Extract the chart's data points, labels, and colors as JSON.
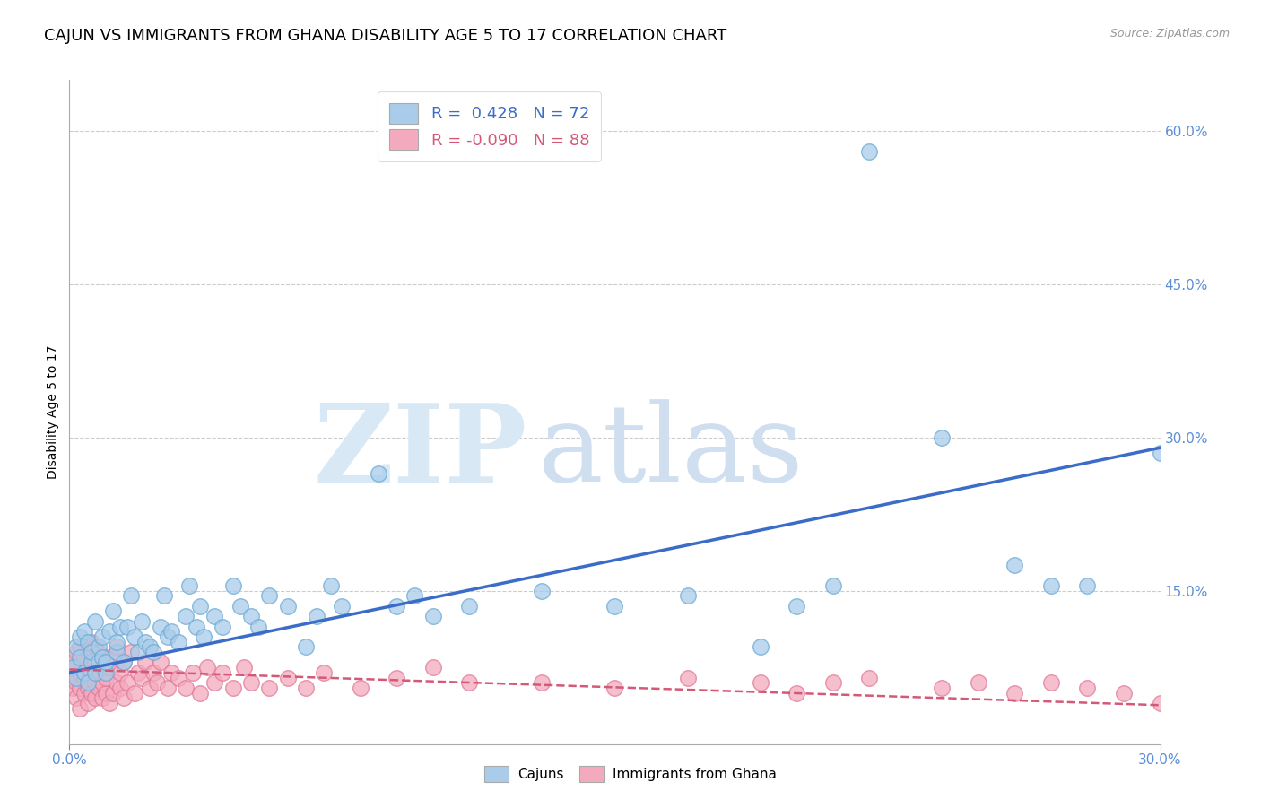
{
  "title": "CAJUN VS IMMIGRANTS FROM GHANA DISABILITY AGE 5 TO 17 CORRELATION CHART",
  "source": "Source: ZipAtlas.com",
  "ylabel_label": "Disability Age 5 to 17",
  "xlim": [
    0.0,
    0.3
  ],
  "ylim": [
    0.0,
    0.65
  ],
  "cajun_R": 0.428,
  "cajun_N": 72,
  "ghana_R": -0.09,
  "ghana_N": 88,
  "cajun_color": "#A8CCEA",
  "cajun_edge_color": "#6BAAD4",
  "ghana_color": "#F4AABE",
  "ghana_edge_color": "#E07898",
  "cajun_line_color": "#3B6CC8",
  "ghana_line_color": "#D45878",
  "tick_color": "#5B8ED6",
  "legend_labels": [
    "Cajuns",
    "Immigrants from Ghana"
  ],
  "watermark_zip": "ZIP",
  "watermark_atlas": "atlas",
  "title_fontsize": 13,
  "axis_fontsize": 10,
  "tick_fontsize": 11,
  "cajun_scatter_x": [
    0.001,
    0.002,
    0.002,
    0.003,
    0.003,
    0.004,
    0.004,
    0.005,
    0.005,
    0.006,
    0.006,
    0.007,
    0.007,
    0.008,
    0.008,
    0.009,
    0.009,
    0.01,
    0.01,
    0.011,
    0.012,
    0.013,
    0.013,
    0.014,
    0.015,
    0.016,
    0.017,
    0.018,
    0.019,
    0.02,
    0.021,
    0.022,
    0.023,
    0.025,
    0.026,
    0.027,
    0.028,
    0.03,
    0.032,
    0.033,
    0.035,
    0.036,
    0.037,
    0.04,
    0.042,
    0.045,
    0.047,
    0.05,
    0.052,
    0.055,
    0.06,
    0.065,
    0.068,
    0.072,
    0.075,
    0.085,
    0.09,
    0.095,
    0.1,
    0.11,
    0.13,
    0.15,
    0.17,
    0.19,
    0.2,
    0.21,
    0.22,
    0.24,
    0.26,
    0.27,
    0.28,
    0.3
  ],
  "cajun_scatter_y": [
    0.075,
    0.065,
    0.095,
    0.085,
    0.105,
    0.07,
    0.11,
    0.06,
    0.1,
    0.08,
    0.09,
    0.07,
    0.12,
    0.095,
    0.08,
    0.085,
    0.105,
    0.07,
    0.08,
    0.11,
    0.13,
    0.09,
    0.1,
    0.115,
    0.08,
    0.115,
    0.145,
    0.105,
    0.09,
    0.12,
    0.1,
    0.095,
    0.09,
    0.115,
    0.145,
    0.105,
    0.11,
    0.1,
    0.125,
    0.155,
    0.115,
    0.135,
    0.105,
    0.125,
    0.115,
    0.155,
    0.135,
    0.125,
    0.115,
    0.145,
    0.135,
    0.095,
    0.125,
    0.155,
    0.135,
    0.265,
    0.135,
    0.145,
    0.125,
    0.135,
    0.15,
    0.135,
    0.145,
    0.095,
    0.135,
    0.155,
    0.58,
    0.3,
    0.175,
    0.155,
    0.155,
    0.285
  ],
  "ghana_scatter_x": [
    0.001,
    0.001,
    0.001,
    0.002,
    0.002,
    0.002,
    0.002,
    0.003,
    0.003,
    0.003,
    0.003,
    0.004,
    0.004,
    0.004,
    0.005,
    0.005,
    0.005,
    0.005,
    0.006,
    0.006,
    0.006,
    0.007,
    0.007,
    0.007,
    0.007,
    0.008,
    0.008,
    0.008,
    0.009,
    0.009,
    0.009,
    0.01,
    0.01,
    0.01,
    0.011,
    0.011,
    0.012,
    0.012,
    0.013,
    0.013,
    0.014,
    0.014,
    0.015,
    0.015,
    0.016,
    0.017,
    0.018,
    0.019,
    0.02,
    0.021,
    0.022,
    0.023,
    0.024,
    0.025,
    0.027,
    0.028,
    0.03,
    0.032,
    0.034,
    0.036,
    0.038,
    0.04,
    0.042,
    0.045,
    0.048,
    0.05,
    0.055,
    0.06,
    0.065,
    0.07,
    0.08,
    0.09,
    0.1,
    0.11,
    0.13,
    0.15,
    0.17,
    0.19,
    0.2,
    0.21,
    0.22,
    0.24,
    0.25,
    0.26,
    0.27,
    0.28,
    0.29,
    0.3
  ],
  "ghana_scatter_y": [
    0.065,
    0.055,
    0.08,
    0.045,
    0.09,
    0.06,
    0.075,
    0.035,
    0.07,
    0.095,
    0.055,
    0.05,
    0.085,
    0.065,
    0.04,
    0.075,
    0.055,
    0.09,
    0.05,
    0.07,
    0.1,
    0.045,
    0.08,
    0.06,
    0.095,
    0.055,
    0.07,
    0.09,
    0.045,
    0.075,
    0.06,
    0.05,
    0.085,
    0.065,
    0.04,
    0.075,
    0.05,
    0.085,
    0.06,
    0.095,
    0.055,
    0.07,
    0.045,
    0.08,
    0.06,
    0.09,
    0.05,
    0.07,
    0.065,
    0.08,
    0.055,
    0.07,
    0.06,
    0.08,
    0.055,
    0.07,
    0.065,
    0.055,
    0.07,
    0.05,
    0.075,
    0.06,
    0.07,
    0.055,
    0.075,
    0.06,
    0.055,
    0.065,
    0.055,
    0.07,
    0.055,
    0.065,
    0.075,
    0.06,
    0.06,
    0.055,
    0.065,
    0.06,
    0.05,
    0.06,
    0.065,
    0.055,
    0.06,
    0.05,
    0.06,
    0.055,
    0.05,
    0.04
  ],
  "cajun_trendline": [
    0.07,
    0.29
  ],
  "ghana_trendline_start": 0.073,
  "ghana_trendline_end": 0.038
}
